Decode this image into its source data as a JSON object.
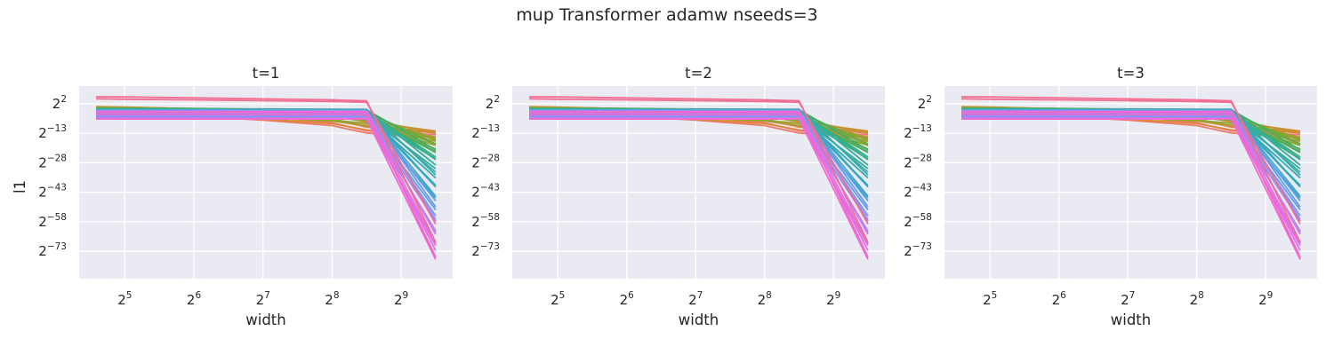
{
  "figure": {
    "suptitle": "mup Transformer adamw nseeds=3"
  },
  "colors": {
    "plot_bg": "#eaeaf2",
    "grid": "#ffffff",
    "palette": [
      "#f77189",
      "#dc8932",
      "#ae9d31",
      "#77ab31",
      "#33b07a",
      "#36ada4",
      "#38a9c5",
      "#6e9bf4",
      "#cc7af4",
      "#f565cc"
    ]
  },
  "chart_data": [
    {
      "type": "line",
      "title": "t=1",
      "xlabel": "width",
      "ylabel": "l1",
      "x": [
        24,
        32,
        64,
        128,
        256,
        362,
        724
      ],
      "x_scale": "log2",
      "y_scale": "log2",
      "x_ticks": [
        {
          "exp": "5",
          "value": 32
        },
        {
          "exp": "6",
          "value": 64
        },
        {
          "exp": "7",
          "value": 128
        },
        {
          "exp": "8",
          "value": 256
        },
        {
          "exp": "9",
          "value": 512
        }
      ],
      "y_ticks": [
        {
          "exp": "2",
          "value_exp": 2
        },
        {
          "exp": "−13",
          "value_exp": -13
        },
        {
          "exp": "−28",
          "value_exp": -28
        },
        {
          "exp": "−43",
          "value_exp": -43
        },
        {
          "exp": "−58",
          "value_exp": -58
        },
        {
          "exp": "−73",
          "value_exp": -73
        }
      ],
      "y_range_exp": [
        -87,
        11
      ],
      "n_series": 48,
      "last_drop_scale": 1.0
    },
    {
      "type": "line",
      "title": "t=2",
      "xlabel": "width",
      "ylabel": "",
      "x": [
        24,
        32,
        64,
        128,
        256,
        362,
        724
      ],
      "x_scale": "log2",
      "y_scale": "log2",
      "x_ticks": [
        {
          "exp": "5",
          "value": 32
        },
        {
          "exp": "6",
          "value": 64
        },
        {
          "exp": "7",
          "value": 128
        },
        {
          "exp": "8",
          "value": 256
        },
        {
          "exp": "9",
          "value": 512
        }
      ],
      "y_ticks": [
        {
          "exp": "2",
          "value_exp": 2
        },
        {
          "exp": "−13",
          "value_exp": -13
        },
        {
          "exp": "−28",
          "value_exp": -28
        },
        {
          "exp": "−43",
          "value_exp": -43
        },
        {
          "exp": "−58",
          "value_exp": -58
        },
        {
          "exp": "−73",
          "value_exp": -73
        }
      ],
      "y_range_exp": [
        -87,
        11
      ],
      "n_series": 48,
      "last_drop_scale": 1.0
    },
    {
      "type": "line",
      "title": "t=3",
      "xlabel": "width",
      "ylabel": "",
      "x": [
        24,
        32,
        64,
        128,
        256,
        362,
        724
      ],
      "x_scale": "log2",
      "y_scale": "log2",
      "x_ticks": [
        {
          "exp": "5",
          "value": 32
        },
        {
          "exp": "6",
          "value": 64
        },
        {
          "exp": "7",
          "value": 128
        },
        {
          "exp": "8",
          "value": 256
        },
        {
          "exp": "9",
          "value": 512
        }
      ],
      "y_ticks": [
        {
          "exp": "2",
          "value_exp": 2
        },
        {
          "exp": "−13",
          "value_exp": -13
        },
        {
          "exp": "−28",
          "value_exp": -28
        },
        {
          "exp": "−43",
          "value_exp": -43
        },
        {
          "exp": "−58",
          "value_exp": -58
        },
        {
          "exp": "−73",
          "value_exp": -73
        }
      ],
      "y_range_exp": [
        -87,
        11
      ],
      "n_series": 48,
      "last_drop_scale": 1.0
    }
  ]
}
